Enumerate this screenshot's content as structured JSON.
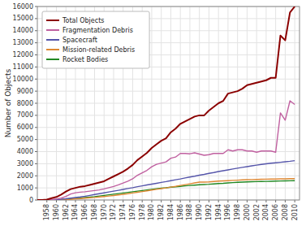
{
  "chart_data": {
    "type": "line",
    "ylabel": "Number of Objects",
    "x": [
      1956,
      1957,
      1958,
      1959,
      1960,
      1961,
      1962,
      1963,
      1964,
      1965,
      1966,
      1967,
      1968,
      1969,
      1970,
      1971,
      1972,
      1973,
      1974,
      1975,
      1976,
      1977,
      1978,
      1979,
      1980,
      1981,
      1982,
      1983,
      1984,
      1985,
      1986,
      1987,
      1988,
      1989,
      1990,
      1991,
      1992,
      1993,
      1994,
      1995,
      1996,
      1997,
      1998,
      1999,
      2000,
      2001,
      2002,
      2003,
      2004,
      2005,
      2006,
      2007,
      2008,
      2009,
      2010
    ],
    "series": [
      {
        "name": "Total Objects",
        "color": "#8B0000",
        "values": [
          0,
          5,
          30,
          150,
          250,
          450,
          700,
          900,
          1000,
          1100,
          1150,
          1250,
          1350,
          1450,
          1550,
          1750,
          1950,
          2150,
          2350,
          2600,
          2900,
          3300,
          3600,
          3900,
          4300,
          4600,
          4900,
          5100,
          5600,
          5900,
          6300,
          6500,
          6700,
          6900,
          7000,
          7000,
          7400,
          7700,
          8000,
          8200,
          8800,
          8900,
          9000,
          9200,
          9500,
          9600,
          9700,
          9800,
          9900,
          10100,
          10100,
          13600,
          13200,
          15500,
          16000
        ]
      },
      {
        "name": "Fragmentation Debris",
        "color": "#C060A0",
        "values": [
          0,
          0,
          0,
          30,
          80,
          150,
          300,
          500,
          600,
          650,
          680,
          730,
          780,
          830,
          920,
          1020,
          1120,
          1250,
          1400,
          1560,
          1750,
          2050,
          2250,
          2450,
          2750,
          2950,
          3050,
          3150,
          3450,
          3550,
          3850,
          3850,
          3820,
          3900,
          3800,
          3700,
          3750,
          3850,
          3850,
          3850,
          4150,
          4050,
          4150,
          4150,
          4050,
          4050,
          3950,
          4050,
          4050,
          4050,
          3950,
          7200,
          6600,
          8200,
          7900
        ]
      },
      {
        "name": "Spacecraft",
        "color": "#5555AA",
        "values": [
          0,
          3,
          8,
          15,
          30,
          60,
          100,
          150,
          200,
          250,
          310,
          380,
          450,
          520,
          590,
          660,
          730,
          800,
          870,
          950,
          1020,
          1100,
          1170,
          1240,
          1310,
          1380,
          1450,
          1520,
          1600,
          1670,
          1740,
          1820,
          1900,
          1970,
          2050,
          2120,
          2200,
          2270,
          2350,
          2420,
          2490,
          2560,
          2630,
          2700,
          2760,
          2820,
          2880,
          2940,
          2990,
          3040,
          3080,
          3120,
          3160,
          3200,
          3250
        ]
      },
      {
        "name": "Mission-related Debris",
        "color": "#DD8833",
        "values": [
          0,
          0,
          0,
          5,
          10,
          20,
          40,
          70,
          100,
          120,
          150,
          180,
          210,
          250,
          290,
          330,
          370,
          420,
          470,
          520,
          580,
          640,
          700,
          760,
          820,
          880,
          940,
          1000,
          1070,
          1130,
          1200,
          1270,
          1340,
          1410,
          1480,
          1480,
          1500,
          1530,
          1560,
          1580,
          1600,
          1620,
          1640,
          1660,
          1680,
          1690,
          1700,
          1710,
          1720,
          1730,
          1730,
          1750,
          1750,
          1760,
          1760
        ]
      },
      {
        "name": "Rocket Bodies",
        "color": "#228822",
        "values": [
          0,
          1,
          3,
          8,
          15,
          30,
          60,
          100,
          130,
          160,
          200,
          240,
          280,
          330,
          380,
          430,
          480,
          530,
          580,
          630,
          680,
          730,
          780,
          830,
          880,
          930,
          970,
          1010,
          1060,
          1090,
          1130,
          1170,
          1200,
          1230,
          1260,
          1280,
          1300,
          1330,
          1360,
          1380,
          1410,
          1440,
          1460,
          1480,
          1500,
          1510,
          1520,
          1530,
          1540,
          1550,
          1560,
          1570,
          1580,
          1590,
          1600
        ]
      }
    ],
    "xlim": [
      1956,
      2011
    ],
    "ylim": [
      0,
      16000
    ],
    "xticks": [
      1958,
      1960,
      1962,
      1964,
      1966,
      1968,
      1970,
      1972,
      1974,
      1976,
      1978,
      1980,
      1982,
      1984,
      1986,
      1988,
      1990,
      1992,
      1994,
      1996,
      1998,
      2000,
      2002,
      2004,
      2006,
      2008,
      2010
    ],
    "yticks": [
      0,
      1000,
      2000,
      3000,
      4000,
      5000,
      6000,
      7000,
      8000,
      9000,
      10000,
      11000,
      12000,
      13000,
      14000,
      15000,
      16000
    ],
    "grid": true,
    "legend": "upper left"
  }
}
